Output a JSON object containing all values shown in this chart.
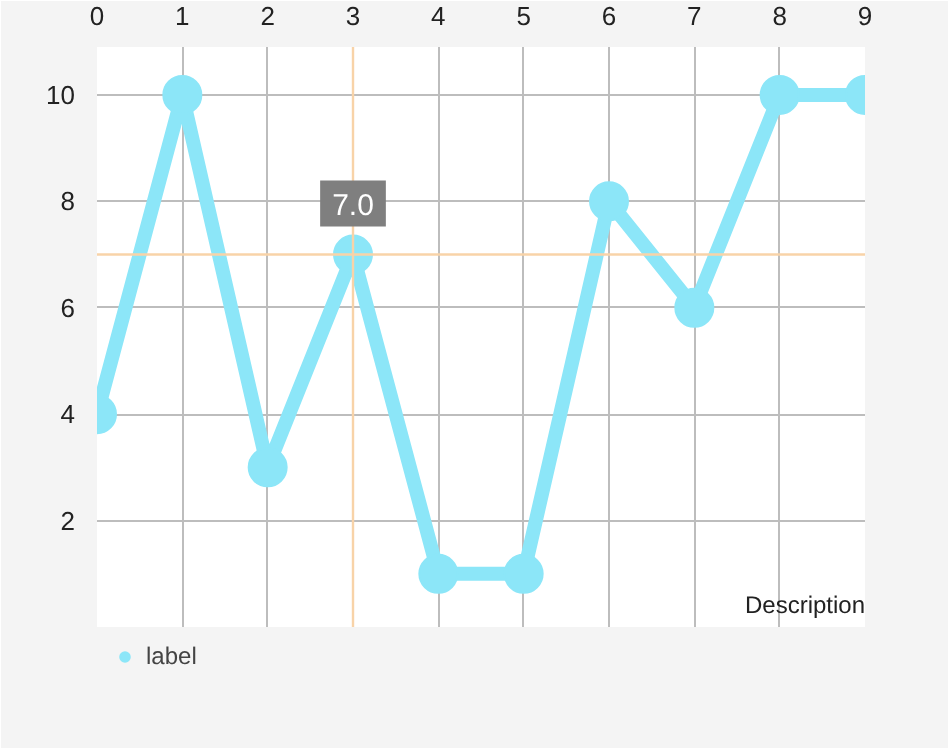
{
  "chart_data": {
    "type": "line",
    "x": [
      0,
      1,
      2,
      3,
      4,
      5,
      6,
      7,
      8,
      9
    ],
    "series": [
      {
        "name": "label",
        "color": "#8ce6f8",
        "values": [
          4,
          10,
          3,
          7,
          1,
          1,
          8,
          6,
          10,
          10
        ]
      }
    ],
    "xlim": [
      0,
      9
    ],
    "xticks": [
      0,
      1,
      2,
      3,
      4,
      5,
      6,
      7,
      8,
      9
    ],
    "ylim": [
      0,
      10.9
    ],
    "yticks": [
      2,
      4,
      6,
      8,
      10
    ],
    "grid": true,
    "marker": "circle",
    "line_style": "solid",
    "legend": "bottom left",
    "ref_lines": [
      {
        "axis": "x",
        "value": 3,
        "color": "#f8d3a8"
      },
      {
        "axis": "y",
        "value": 7,
        "color": "#f8d3a8"
      }
    ],
    "annotations": [
      {
        "text": "7.0",
        "x": 3,
        "y": 7
      },
      "Description"
    ]
  }
}
